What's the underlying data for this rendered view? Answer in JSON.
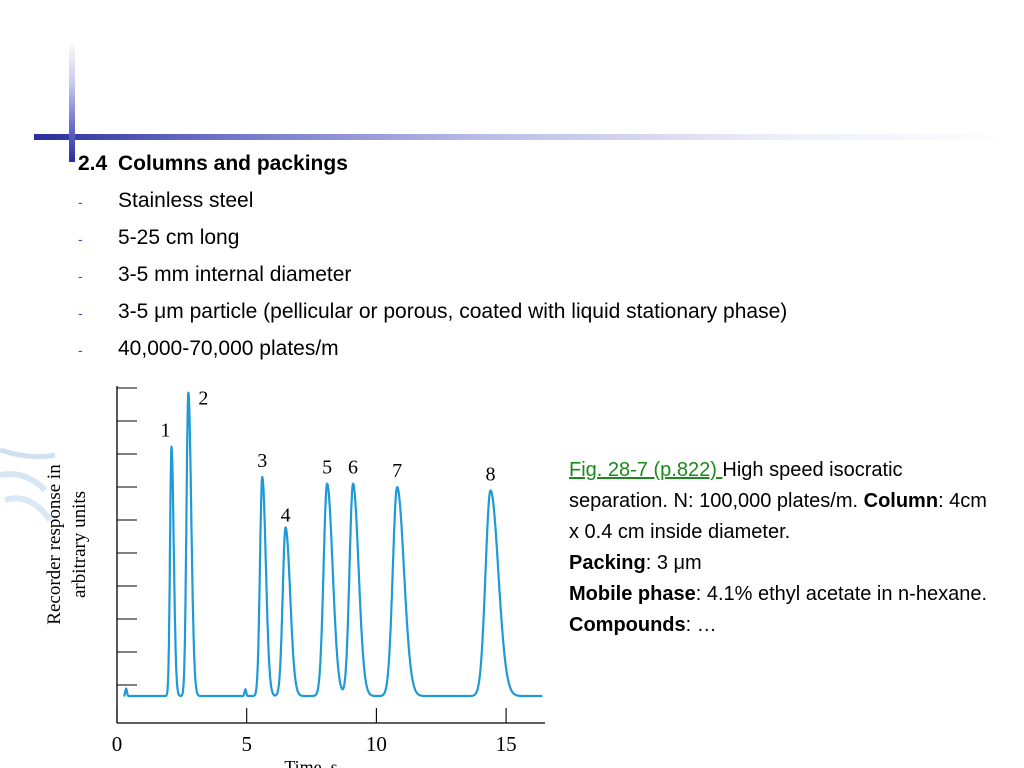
{
  "slide": {
    "section_number": "2.4",
    "section_title": "Columns and packings",
    "bullets": [
      "Stainless steel",
      "5-25 cm long",
      "3-5 mm internal diameter",
      "3-5 μm particle (pellicular or porous, coated with liquid stationary phase)",
      "40,000-70,000 plates/m"
    ],
    "bullet_marker": "-"
  },
  "caption": {
    "fig_ref": "Fig. 28-7 (p.822) ",
    "line1_rest": "High speed isocratic separation. N: 100,000 plates/m. ",
    "column_label": "Column",
    "column_value": ": 4cm x 0.4 cm inside diameter.",
    "packing_label": "Packing",
    "packing_value": ": 3 μm",
    "mobile_label": "Mobile phase",
    "mobile_value": ": 4.1% ethyl acetate in n-hexane.",
    "compounds_label": "Compounds",
    "compounds_value": ": …"
  },
  "colors": {
    "trace": "#1f9ad6",
    "axis": "#000000",
    "accent_bar": "#2b2e9c",
    "link": "#1a8a1a"
  },
  "chart_data": {
    "type": "line",
    "xlabel": "Time, s",
    "ylabel_lines": [
      "Recorder response in",
      "arbitrary units"
    ],
    "xlim": [
      0,
      16.5
    ],
    "ylim": [
      0,
      100
    ],
    "x_ticks": [
      "0",
      "5",
      "10",
      "15"
    ],
    "x_tick_values": [
      0,
      5,
      10,
      15
    ],
    "y_tick_count": 10,
    "grid": false,
    "baseline": 8,
    "peaks": [
      {
        "label": "1",
        "t": 2.1,
        "height": 82,
        "width": 0.07
      },
      {
        "label": "2",
        "t": 2.75,
        "height": 98,
        "width": 0.09
      },
      {
        "label": "3",
        "t": 5.6,
        "height": 73,
        "width": 0.11
      },
      {
        "label": "4",
        "t": 6.5,
        "height": 58,
        "width": 0.14
      },
      {
        "label": "5",
        "t": 8.1,
        "height": 71,
        "width": 0.17
      },
      {
        "label": "6",
        "t": 9.1,
        "height": 71,
        "width": 0.17
      },
      {
        "label": "7",
        "t": 10.8,
        "height": 70,
        "width": 0.21
      },
      {
        "label": "8",
        "t": 14.4,
        "height": 69,
        "width": 0.24
      }
    ]
  }
}
